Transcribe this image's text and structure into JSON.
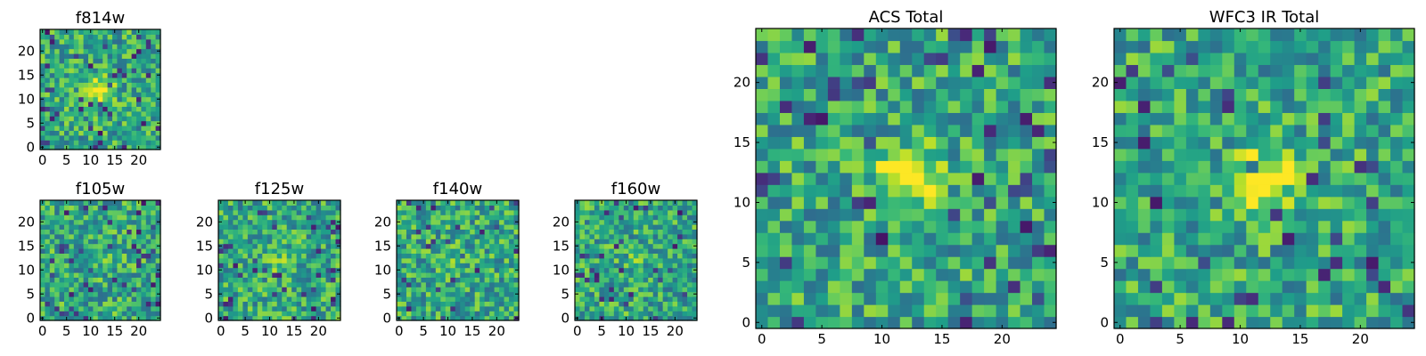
{
  "chart_data": [
    {
      "type": "heatmap",
      "title": "f814w",
      "grid_size": 25,
      "xticks": [
        "0",
        "5",
        "10",
        "15",
        "20"
      ],
      "yticks": [
        "0",
        "5",
        "10",
        "15",
        "20"
      ],
      "xlim": [
        0,
        24
      ],
      "ylim": [
        0,
        24
      ],
      "colormap": "viridis",
      "source_peak": [
        12,
        12
      ],
      "source_strength": 0.45,
      "seed": 11
    },
    {
      "type": "heatmap",
      "title": "f105w",
      "grid_size": 25,
      "xticks": [
        "0",
        "5",
        "10",
        "15",
        "20"
      ],
      "yticks": [
        "0",
        "5",
        "10",
        "15",
        "20"
      ],
      "xlim": [
        0,
        24
      ],
      "ylim": [
        0,
        24
      ],
      "colormap": "viridis",
      "source_peak": [
        12,
        12
      ],
      "source_strength": 0.1,
      "seed": 23
    },
    {
      "type": "heatmap",
      "title": "f125w",
      "grid_size": 25,
      "xticks": [
        "0",
        "5",
        "10",
        "15",
        "20"
      ],
      "yticks": [
        "0",
        "5",
        "10",
        "15",
        "20"
      ],
      "xlim": [
        0,
        24
      ],
      "ylim": [
        0,
        24
      ],
      "colormap": "viridis",
      "source_peak": [
        12,
        12
      ],
      "source_strength": 0.15,
      "seed": 37
    },
    {
      "type": "heatmap",
      "title": "f140w",
      "grid_size": 25,
      "xticks": [
        "0",
        "5",
        "10",
        "15",
        "20"
      ],
      "yticks": [
        "0",
        "5",
        "10",
        "15",
        "20"
      ],
      "xlim": [
        0,
        24
      ],
      "ylim": [
        0,
        24
      ],
      "colormap": "viridis",
      "source_peak": [
        12,
        12
      ],
      "source_strength": 0.1,
      "seed": 41
    },
    {
      "type": "heatmap",
      "title": "f160w",
      "grid_size": 25,
      "xticks": [
        "0",
        "5",
        "10",
        "15",
        "20"
      ],
      "yticks": [
        "0",
        "5",
        "10",
        "15",
        "20"
      ],
      "xlim": [
        0,
        24
      ],
      "ylim": [
        0,
        24
      ],
      "colormap": "viridis",
      "source_peak": [
        12,
        12
      ],
      "source_strength": 0.1,
      "seed": 53
    },
    {
      "type": "heatmap",
      "title": "ACS Total",
      "grid_size": 25,
      "xticks": [
        "0",
        "5",
        "10",
        "15",
        "20"
      ],
      "yticks": [
        "0",
        "5",
        "10",
        "15",
        "20"
      ],
      "xlim": [
        0,
        24
      ],
      "ylim": [
        0,
        24
      ],
      "colormap": "viridis",
      "source_peak": [
        12,
        12
      ],
      "source_strength": 0.45,
      "seed": 67
    },
    {
      "type": "heatmap",
      "title": "WFC3 IR Total",
      "grid_size": 25,
      "xticks": [
        "0",
        "5",
        "10",
        "15",
        "20"
      ],
      "yticks": [
        "0",
        "5",
        "10",
        "15",
        "20"
      ],
      "xlim": [
        0,
        24
      ],
      "ylim": [
        0,
        24
      ],
      "colormap": "viridis",
      "source_peak": [
        12,
        12
      ],
      "source_strength": 0.4,
      "seed": 79
    }
  ]
}
